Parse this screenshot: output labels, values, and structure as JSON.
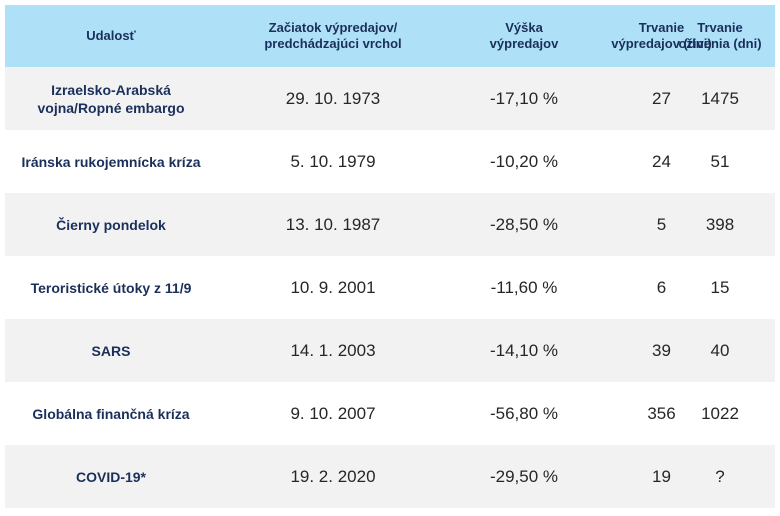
{
  "columns": [
    "Udalosť",
    "Začiatok výpredajov/\npredchádzajúci vrchol",
    "Výška\nvýpredajov",
    "Trvanie\nvýpredajov (dni)",
    "Trvanie\noživenia (dni)"
  ],
  "rows": [
    {
      "event": "Izraelsko-Arabská\nvojna/Ropné embargo",
      "start": "29. 10. 1973",
      "drop": "-17,10 %",
      "duration": "27",
      "recovery": "1475"
    },
    {
      "event": "Iránska rukojemnícka kríza",
      "start": "5. 10. 1979",
      "drop": "-10,20 %",
      "duration": "24",
      "recovery": "51"
    },
    {
      "event": "Čierny pondelok",
      "start": "13. 10. 1987",
      "drop": "-28,50 %",
      "duration": "5",
      "recovery": "398"
    },
    {
      "event": "Teroristické útoky z 11/9",
      "start": "10. 9. 2001",
      "drop": "-11,60 %",
      "duration": "6",
      "recovery": "15"
    },
    {
      "event": "SARS",
      "start": "14. 1. 2003",
      "drop": "-14,10 %",
      "duration": "39",
      "recovery": "40"
    },
    {
      "event": "Globálna finančná kríza",
      "start": "9. 10. 2007",
      "drop": "-56,80 %",
      "duration": "356",
      "recovery": "1022"
    },
    {
      "event": "COVID-19*",
      "start": "19. 2. 2020",
      "drop": "-29,50 %",
      "duration": "19",
      "recovery": "?"
    }
  ],
  "colors": {
    "header_bg": "#aee0f8",
    "header_text": "#1a2f5a",
    "row_shade": "#f2f2f2",
    "value_text": "#262626"
  }
}
